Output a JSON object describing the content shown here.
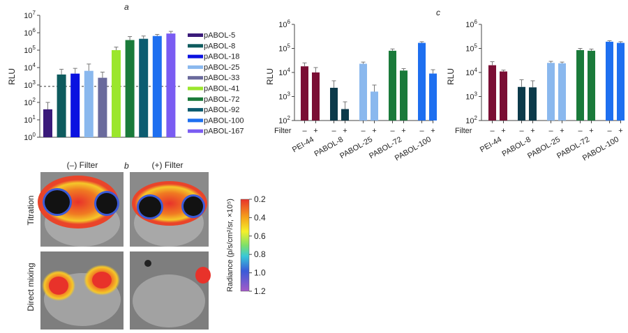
{
  "panel_letters": {
    "a": "a",
    "b": "b",
    "c": "c"
  },
  "panel_a": {
    "ylabel": "RLU",
    "yticks": [
      "10",
      "10",
      "10",
      "10",
      "10",
      "10",
      "10",
      "10"
    ],
    "yexps": [
      "0",
      "1",
      "2",
      "3",
      "4",
      "5",
      "6",
      "7"
    ],
    "legend": [
      "pABOL-5",
      "pABOL-8",
      "pABOL-18",
      "pABOL-25",
      "pABOL-33",
      "pABOL-41",
      "pABOL-72",
      "pABOL-92",
      "pABOL-100",
      "pABOL-167"
    ]
  },
  "panel_b": {
    "col_labels": [
      "(–) Filter",
      "(+) Filter"
    ],
    "row_labels": [
      "Titration",
      "Direct mixing"
    ],
    "colorbar_label": "Radiance (p/s/cm²/sr, ×10⁵)",
    "colorbar_ticks": [
      "0.2",
      "0.4",
      "0.6",
      "0.8",
      "1.0",
      "1.2"
    ]
  },
  "panel_mid": {
    "ylabel": "RLU",
    "yticks": [
      "10",
      "10",
      "10",
      "10",
      "10"
    ],
    "yexps": [
      "2",
      "3",
      "4",
      "5",
      "6"
    ],
    "filter_label": "Filter",
    "minus": "–",
    "plus": "+",
    "groups": [
      "PEI-44",
      "PABOL-8",
      "PABOL-25",
      "PABOL-72",
      "PABOL-100"
    ]
  },
  "panel_c": {
    "ylabel": "RLU",
    "yticks": [
      "10",
      "10",
      "10",
      "10",
      "10"
    ],
    "yexps": [
      "2",
      "3",
      "4",
      "5",
      "6"
    ],
    "filter_label": "Filter",
    "minus": "–",
    "plus": "+",
    "groups": [
      "PEI-44",
      "PABOL-8",
      "PABOL-25",
      "PABOL-72",
      "PABOL-100"
    ]
  },
  "chart_data": [
    {
      "type": "bar",
      "ylabel": "RLU",
      "yscale": "log",
      "ylim": [
        1,
        10000000
      ],
      "reference_line": 1000,
      "categories": [
        "pABOL-5",
        "pABOL-8",
        "pABOL-18",
        "pABOL-25",
        "pABOL-33",
        "pABOL-41",
        "pABOL-72",
        "pABOL-92",
        "pABOL-100",
        "pABOL-167"
      ],
      "values": [
        40,
        4000,
        4500,
        6500,
        2600,
        100000,
        380000,
        450000,
        650000,
        900000
      ],
      "errors_upper": [
        100,
        8000,
        9000,
        16000,
        5500,
        150000,
        600000,
        650000,
        800000,
        1200000
      ],
      "colors": [
        "#3a1a7a",
        "#0e5b5e",
        "#0a12e0",
        "#8ab8ee",
        "#6a6a9c",
        "#9be62d",
        "#1a7a3a",
        "#0c5c70",
        "#1e6ff0",
        "#7a5cf2"
      ],
      "legend": "right"
    },
    {
      "type": "bar",
      "ylabel": "RLU",
      "yscale": "log",
      "ylim": [
        100,
        1000000
      ],
      "categories": [
        "PEI-44",
        "PABOL-8",
        "PABOL-25",
        "PABOL-72",
        "PABOL-100"
      ],
      "series": [
        {
          "values": [
            18000,
            2300,
            23000,
            80000,
            170000
          ]
        },
        {
          "values": [
            10000,
            300,
            1600,
            12000,
            9000
          ]
        }
      ],
      "errors_upper": [
        [
          25000,
          4500,
          27000,
          95000,
          190000
        ],
        [
          16000,
          600,
          3000,
          14500,
          13000
        ]
      ],
      "colors": [
        "#7a0e34",
        "#0c3a4a",
        "#8ab8ee",
        "#1a7a3a",
        "#1e6ff0"
      ]
    },
    {
      "type": "bar",
      "ylabel": "RLU",
      "yscale": "log",
      "ylim": [
        100,
        1000000
      ],
      "categories": [
        "PEI-44",
        "PABOL-8",
        "PABOL-25",
        "PABOL-72",
        "PABOL-100"
      ],
      "series": [
        {
          "values": [
            20000,
            2500,
            25000,
            85000,
            190000
          ]
        },
        {
          "values": [
            11000,
            2400,
            24000,
            80000,
            170000
          ]
        }
      ],
      "errors_upper": [
        [
          28000,
          5000,
          29000,
          100000,
          210000
        ],
        [
          12500,
          4500,
          27000,
          94000,
          190000
        ]
      ],
      "colors": [
        "#7a0e34",
        "#0c3a4a",
        "#8ab8ee",
        "#1a7a3a",
        "#1e6ff0"
      ]
    }
  ]
}
